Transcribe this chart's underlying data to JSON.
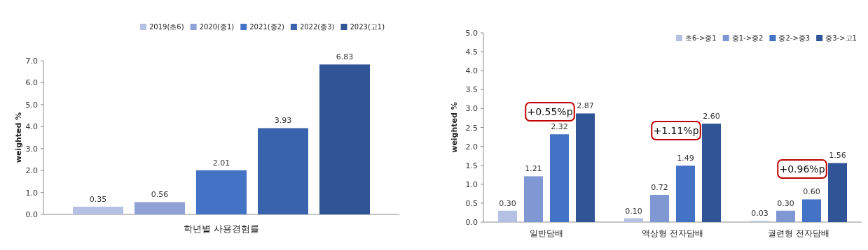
{
  "chart_data": [
    {
      "type": "bar",
      "ylabel": "weighted %",
      "xlabel": "학년별 사용경험률",
      "categories": [
        null
      ],
      "series": [
        {
          "name": "2019(초6)",
          "color": "#b4c0e4",
          "values": [
            0.35
          ],
          "value_labels": [
            "0.35"
          ]
        },
        {
          "name": "2020(중1)",
          "color": "#8fa2d8",
          "values": [
            0.56
          ],
          "value_labels": [
            "0.56"
          ]
        },
        {
          "name": "2021(중2)",
          "color": "#4472c4",
          "values": [
            2.01
          ],
          "value_labels": [
            "2.01"
          ]
        },
        {
          "name": "2022(중3)",
          "color": "#3a63ad",
          "values": [
            3.93
          ],
          "value_labels": [
            "3.93"
          ]
        },
        {
          "name": "2023(고1)",
          "color": "#2f5597",
          "values": [
            6.83
          ],
          "value_labels": [
            "6.83"
          ]
        }
      ],
      "ylim": [
        0,
        7
      ],
      "yticks": [
        {
          "value": 0,
          "label": "0.0"
        },
        {
          "value": 1,
          "label": "1.0"
        },
        {
          "value": 2,
          "label": "2.0"
        },
        {
          "value": 3,
          "label": "3.0"
        },
        {
          "value": 4,
          "label": "4.0"
        },
        {
          "value": 5,
          "label": "5.0"
        },
        {
          "value": 6,
          "label": "6.0"
        },
        {
          "value": 7,
          "label": "7.0"
        }
      ],
      "legend": "top",
      "grid": false
    },
    {
      "type": "bar",
      "ylabel": "weighted %",
      "categories": [
        "일반담배",
        "액상형 전자담배",
        "궐련형 전자담배"
      ],
      "series": [
        {
          "name": "초6->중1",
          "color": "#b4c0e4",
          "values": [
            0.3,
            0.1,
            0.03
          ],
          "value_labels": [
            "0.30",
            "0.10",
            "0.03"
          ]
        },
        {
          "name": "중1->중2",
          "color": "#7f97d3",
          "values": [
            1.21,
            0.72,
            0.3
          ],
          "value_labels": [
            "1.21",
            "0.72",
            "0.30"
          ]
        },
        {
          "name": "중2->중3",
          "color": "#4472c4",
          "values": [
            2.32,
            1.49,
            0.6
          ],
          "value_labels": [
            "2.32",
            "1.49",
            "0.60"
          ]
        },
        {
          "name": "중3->고1",
          "color": "#2f5597",
          "values": [
            2.87,
            2.6,
            1.56
          ],
          "value_labels": [
            "2.87",
            "2.60",
            "1.56"
          ]
        }
      ],
      "annotations": [
        "+0.55%p",
        "+1.11%p",
        "+0.96%p"
      ],
      "ylim": [
        0,
        5
      ],
      "yticks": [
        {
          "value": 0,
          "label": "0.0"
        },
        {
          "value": 0.5,
          "label": "0.5"
        },
        {
          "value": 1,
          "label": "1.0"
        },
        {
          "value": 1.5,
          "label": "1.5"
        },
        {
          "value": 2,
          "label": "2.0"
        },
        {
          "value": 2.5,
          "label": "2.5"
        },
        {
          "value": 3,
          "label": "3.0"
        },
        {
          "value": 3.5,
          "label": "3.5"
        },
        {
          "value": 4,
          "label": "4.0"
        },
        {
          "value": 4.5,
          "label": "4.5"
        },
        {
          "value": 5,
          "label": "5.0"
        }
      ],
      "legend": "top right",
      "grid": false
    }
  ]
}
